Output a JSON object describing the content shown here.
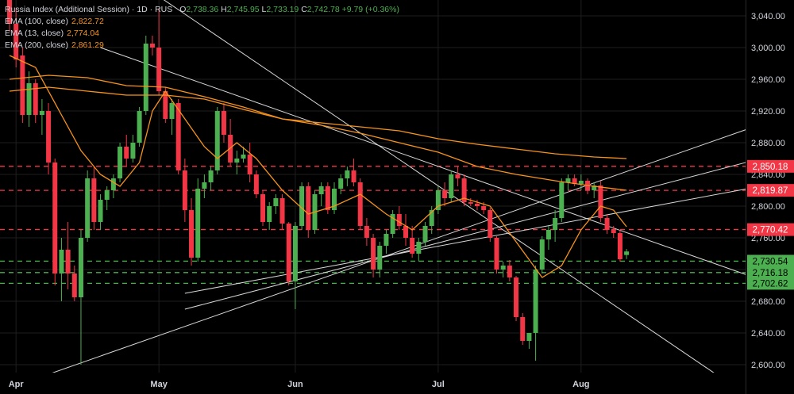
{
  "legend": {
    "symbol": "Russia Index (Additional Session) · 1D · RUS",
    "o_label": "O",
    "o": "2,738.36",
    "h_label": "H",
    "h": "2,745.95",
    "l_label": "L",
    "l": "2,733.19",
    "c_label": "C",
    "c": "2,742.78",
    "change": "+9.79 (+0.36%)",
    "ema100_label": "EMA (100, close)",
    "ema100": "2,822.72",
    "ema13_label": "EMA (13, close)",
    "ema13": "2,774.04",
    "ema200_label": "EMA (200, close)",
    "ema200": "2,861.29"
  },
  "colors": {
    "up": "#26a69a",
    "up_bright": "#4caf50",
    "down": "#f23645",
    "ema": "#f7931a",
    "grid": "#1e1e1e",
    "trend": "#d9d9d9",
    "level_red": "#f23645",
    "level_green": "#4caf50",
    "background": "#000000"
  },
  "chart_data": {
    "type": "candlestick",
    "y_axis": {
      "min": 2590,
      "max": 3060,
      "ticks": [
        {
          "value": 3040,
          "label": "3,040.00"
        },
        {
          "value": 3000,
          "label": "3,000.00"
        },
        {
          "value": 2960,
          "label": "2,960.00"
        },
        {
          "value": 2920,
          "label": "2,920.00"
        },
        {
          "value": 2880,
          "label": "2,880.00"
        },
        {
          "value": 2840,
          "label": "2,840.00"
        },
        {
          "value": 2800,
          "label": "2,800.00"
        },
        {
          "value": 2760,
          "label": "2,760.00"
        },
        {
          "value": 2720,
          "label": "2,720.00"
        },
        {
          "value": 2680,
          "label": "2,680.00"
        },
        {
          "value": 2640,
          "label": "2,640.00"
        },
        {
          "value": 2600,
          "label": "2,600.00"
        }
      ]
    },
    "x_axis": {
      "bars": 96,
      "labels": [
        {
          "bar": 1,
          "label": "Apr"
        },
        {
          "bar": 23,
          "label": "May"
        },
        {
          "bar": 44,
          "label": "Jun"
        },
        {
          "bar": 66,
          "label": "Jul"
        },
        {
          "bar": 88,
          "label": "Aug"
        }
      ]
    },
    "levels": [
      {
        "value": 2850.18,
        "label": "2,850.18",
        "color": "red"
      },
      {
        "value": 2819.87,
        "label": "2,819.87",
        "color": "red"
      },
      {
        "value": 2770.42,
        "label": "2,770.42",
        "color": "red"
      },
      {
        "value": 2730.54,
        "label": "2,730.54",
        "color": "green"
      },
      {
        "value": 2716.18,
        "label": "2,716.18",
        "color": "green"
      },
      {
        "value": 2702.62,
        "label": "2,702.62",
        "color": "green"
      }
    ],
    "candles": [
      [
        3080,
        3090,
        3020,
        3030
      ],
      [
        3030,
        3050,
        2975,
        2985
      ],
      [
        2990,
        3000,
        2905,
        2915
      ],
      [
        2915,
        2970,
        2900,
        2955
      ],
      [
        2955,
        2960,
        2905,
        2915
      ],
      [
        2915,
        2935,
        2890,
        2920
      ],
      [
        2920,
        2930,
        2840,
        2855
      ],
      [
        2855,
        2860,
        2700,
        2715
      ],
      [
        2715,
        2760,
        2680,
        2745
      ],
      [
        2745,
        2780,
        2695,
        2715
      ],
      [
        2715,
        2725,
        2680,
        2685
      ],
      [
        2685,
        2770,
        2600,
        2760
      ],
      [
        2760,
        2845,
        2755,
        2835
      ],
      [
        2835,
        2850,
        2770,
        2780
      ],
      [
        2780,
        2815,
        2770,
        2808
      ],
      [
        2808,
        2825,
        2795,
        2820
      ],
      [
        2820,
        2840,
        2810,
        2835
      ],
      [
        2835,
        2880,
        2830,
        2875
      ],
      [
        2875,
        2890,
        2850,
        2860
      ],
      [
        2860,
        2890,
        2855,
        2880
      ],
      [
        2880,
        2925,
        2875,
        2920
      ],
      [
        2920,
        3015,
        2915,
        3005
      ],
      [
        3005,
        3015,
        2990,
        3000
      ],
      [
        3000,
        3050,
        2940,
        2945
      ],
      [
        2945,
        2950,
        2905,
        2910
      ],
      [
        2910,
        2935,
        2890,
        2930
      ],
      [
        2930,
        2935,
        2840,
        2845
      ],
      [
        2845,
        2860,
        2780,
        2795
      ],
      [
        2795,
        2810,
        2725,
        2735
      ],
      [
        2735,
        2835,
        2730,
        2822
      ],
      [
        2822,
        2840,
        2810,
        2830
      ],
      [
        2830,
        2850,
        2820,
        2845
      ],
      [
        2845,
        2925,
        2840,
        2920
      ],
      [
        2920,
        2930,
        2880,
        2890
      ],
      [
        2890,
        2910,
        2850,
        2855
      ],
      [
        2855,
        2870,
        2840,
        2860
      ],
      [
        2860,
        2875,
        2855,
        2865
      ],
      [
        2865,
        2880,
        2830,
        2840
      ],
      [
        2840,
        2845,
        2810,
        2815
      ],
      [
        2815,
        2820,
        2775,
        2780
      ],
      [
        2780,
        2805,
        2770,
        2800
      ],
      [
        2800,
        2815,
        2790,
        2810
      ],
      [
        2810,
        2815,
        2770,
        2778
      ],
      [
        2778,
        2780,
        2700,
        2705
      ],
      [
        2705,
        2780,
        2670,
        2775
      ],
      [
        2775,
        2830,
        2770,
        2825
      ],
      [
        2825,
        2830,
        2760,
        2770
      ],
      [
        2770,
        2820,
        2765,
        2815
      ],
      [
        2815,
        2830,
        2800,
        2825
      ],
      [
        2825,
        2830,
        2790,
        2795
      ],
      [
        2795,
        2830,
        2790,
        2822
      ],
      [
        2822,
        2840,
        2815,
        2835
      ],
      [
        2835,
        2850,
        2825,
        2845
      ],
      [
        2845,
        2860,
        2825,
        2830
      ],
      [
        2830,
        2835,
        2770,
        2775
      ],
      [
        2775,
        2785,
        2750,
        2760
      ],
      [
        2760,
        2765,
        2710,
        2720
      ],
      [
        2720,
        2755,
        2710,
        2750
      ],
      [
        2750,
        2770,
        2740,
        2765
      ],
      [
        2765,
        2795,
        2760,
        2790
      ],
      [
        2790,
        2800,
        2770,
        2775
      ],
      [
        2775,
        2790,
        2750,
        2760
      ],
      [
        2760,
        2775,
        2735,
        2740
      ],
      [
        2740,
        2760,
        2730,
        2755
      ],
      [
        2755,
        2780,
        2750,
        2775
      ],
      [
        2775,
        2800,
        2765,
        2795
      ],
      [
        2795,
        2825,
        2790,
        2820
      ],
      [
        2820,
        2830,
        2800,
        2810
      ],
      [
        2810,
        2845,
        2805,
        2840
      ],
      [
        2840,
        2850,
        2825,
        2835
      ],
      [
        2835,
        2840,
        2800,
        2805
      ],
      [
        2805,
        2810,
        2800,
        2803
      ],
      [
        2803,
        2808,
        2795,
        2800
      ],
      [
        2800,
        2805,
        2790,
        2795
      ],
      [
        2795,
        2798,
        2755,
        2760
      ],
      [
        2760,
        2762,
        2715,
        2720
      ],
      [
        2720,
        2730,
        2710,
        2725
      ],
      [
        2725,
        2732,
        2705,
        2710
      ],
      [
        2710,
        2712,
        2655,
        2660
      ],
      [
        2660,
        2665,
        2625,
        2630
      ],
      [
        2630,
        2640,
        2620,
        2640
      ],
      [
        2640,
        2725,
        2605,
        2720
      ],
      [
        2720,
        2762,
        2715,
        2758
      ],
      [
        2758,
        2775,
        2745,
        2770
      ],
      [
        2770,
        2795,
        2755,
        2785
      ],
      [
        2785,
        2835,
        2780,
        2830
      ],
      [
        2830,
        2840,
        2820,
        2835
      ],
      [
        2835,
        2840,
        2825,
        2828
      ],
      [
        2828,
        2840,
        2820,
        2832
      ],
      [
        2832,
        2835,
        2815,
        2820
      ],
      [
        2820,
        2830,
        2810,
        2826
      ],
      [
        2826,
        2832,
        2780,
        2785
      ],
      [
        2785,
        2790,
        2765,
        2770
      ],
      [
        2770,
        2775,
        2760,
        2766
      ],
      [
        2766,
        2770,
        2730,
        2733
      ],
      [
        2738.36,
        2745.95,
        2733.19,
        2742.78
      ]
    ],
    "ema100": [
      [
        0,
        2960
      ],
      [
        6,
        2965
      ],
      [
        12,
        2962
      ],
      [
        18,
        2952
      ],
      [
        24,
        2950
      ],
      [
        30,
        2938
      ],
      [
        36,
        2925
      ],
      [
        42,
        2910
      ],
      [
        48,
        2902
      ],
      [
        54,
        2892
      ],
      [
        60,
        2880
      ],
      [
        66,
        2868
      ],
      [
        72,
        2850
      ],
      [
        78,
        2840
      ],
      [
        84,
        2832
      ],
      [
        90,
        2825
      ],
      [
        95,
        2820
      ]
    ],
    "ema13": [
      [
        0,
        2990
      ],
      [
        4,
        2975
      ],
      [
        8,
        2915
      ],
      [
        11,
        2870
      ],
      [
        14,
        2840
      ],
      [
        17,
        2825
      ],
      [
        20,
        2855
      ],
      [
        22,
        2920
      ],
      [
        24,
        2945
      ],
      [
        27,
        2910
      ],
      [
        30,
        2875
      ],
      [
        32,
        2860
      ],
      [
        35,
        2880
      ],
      [
        38,
        2860
      ],
      [
        42,
        2820
      ],
      [
        46,
        2790
      ],
      [
        50,
        2800
      ],
      [
        54,
        2815
      ],
      [
        58,
        2790
      ],
      [
        62,
        2770
      ],
      [
        66,
        2800
      ],
      [
        70,
        2810
      ],
      [
        74,
        2800
      ],
      [
        78,
        2755
      ],
      [
        82,
        2710
      ],
      [
        85,
        2725
      ],
      [
        88,
        2770
      ],
      [
        91,
        2800
      ],
      [
        93,
        2795
      ],
      [
        95,
        2774
      ]
    ],
    "ema200": [
      [
        0,
        2945
      ],
      [
        6,
        2950
      ],
      [
        12,
        2945
      ],
      [
        18,
        2940
      ],
      [
        24,
        2940
      ],
      [
        30,
        2935
      ],
      [
        36,
        2922
      ],
      [
        42,
        2910
      ],
      [
        48,
        2905
      ],
      [
        54,
        2900
      ],
      [
        60,
        2895
      ],
      [
        66,
        2885
      ],
      [
        72,
        2878
      ],
      [
        78,
        2872
      ],
      [
        84,
        2866
      ],
      [
        90,
        2862
      ],
      [
        95,
        2860
      ]
    ],
    "trendlines": [
      {
        "a": [
          5,
          2585
        ],
        "b": [
          132,
          2950
        ]
      },
      {
        "a": [
          27,
          2670
        ],
        "b": [
          132,
          2895
        ]
      },
      {
        "a": [
          27,
          2690
        ],
        "b": [
          132,
          2850
        ]
      },
      {
        "a": [
          14,
          3000
        ],
        "b": [
          132,
          2660
        ]
      },
      {
        "a": [
          22,
          3070
        ],
        "b": [
          112,
          2570
        ]
      }
    ]
  }
}
